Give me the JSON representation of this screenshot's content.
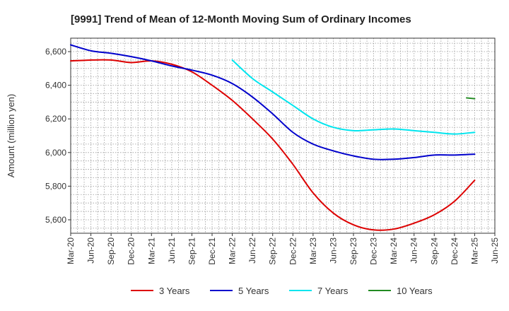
{
  "chart_data": {
    "type": "line",
    "title": "[9991]  Trend of Mean of 12-Month Moving Sum of Ordinary Incomes",
    "xlabel": "",
    "ylabel": "Amount (million yen)",
    "ylim": [
      5520,
      6680
    ],
    "yticks": [
      5600,
      5800,
      6000,
      6200,
      6400,
      6600
    ],
    "ytick_labels": [
      "5,600",
      "5,800",
      "6,000",
      "6,200",
      "6,400",
      "6,600"
    ],
    "categories": [
      "Mar-20",
      "Jun-20",
      "Sep-20",
      "Dec-20",
      "Mar-21",
      "Jun-21",
      "Sep-21",
      "Dec-21",
      "Mar-22",
      "Jun-22",
      "Sep-22",
      "Dec-22",
      "Mar-23",
      "Jun-23",
      "Sep-23",
      "Dec-23",
      "Mar-24",
      "Jun-24",
      "Sep-24",
      "Dec-24",
      "Mar-25",
      "Jun-25"
    ],
    "grid": true,
    "legend_position": "bottom",
    "series": [
      {
        "name": "3 Years",
        "color": "#dd0000",
        "values": [
          6545,
          6550,
          6550,
          6535,
          6545,
          6525,
          6480,
          6400,
          6310,
          6200,
          6080,
          5930,
          5760,
          5640,
          5570,
          5540,
          5545,
          5580,
          5630,
          5710,
          5835,
          null
        ]
      },
      {
        "name": "5 Years",
        "color": "#0000cc",
        "values": [
          6640,
          6605,
          6590,
          6570,
          6545,
          6515,
          6490,
          6460,
          6410,
          6330,
          6230,
          6120,
          6050,
          6010,
          5980,
          5960,
          5960,
          5970,
          5985,
          5985,
          5990,
          null
        ]
      },
      {
        "name": "7 Years",
        "color": "#00e5ee",
        "values": [
          null,
          null,
          null,
          null,
          null,
          null,
          null,
          null,
          6550,
          6440,
          6360,
          6280,
          6200,
          6150,
          6130,
          6135,
          6140,
          6130,
          6120,
          6110,
          6120,
          null
        ]
      },
      {
        "name": "10 Years",
        "color": "#228b22",
        "values": [
          null,
          null,
          null,
          null,
          null,
          null,
          null,
          null,
          null,
          null,
          null,
          null,
          null,
          null,
          null,
          null,
          null,
          null,
          null,
          null,
          6320,
          null
        ],
        "prev_value": 6325
      }
    ]
  }
}
